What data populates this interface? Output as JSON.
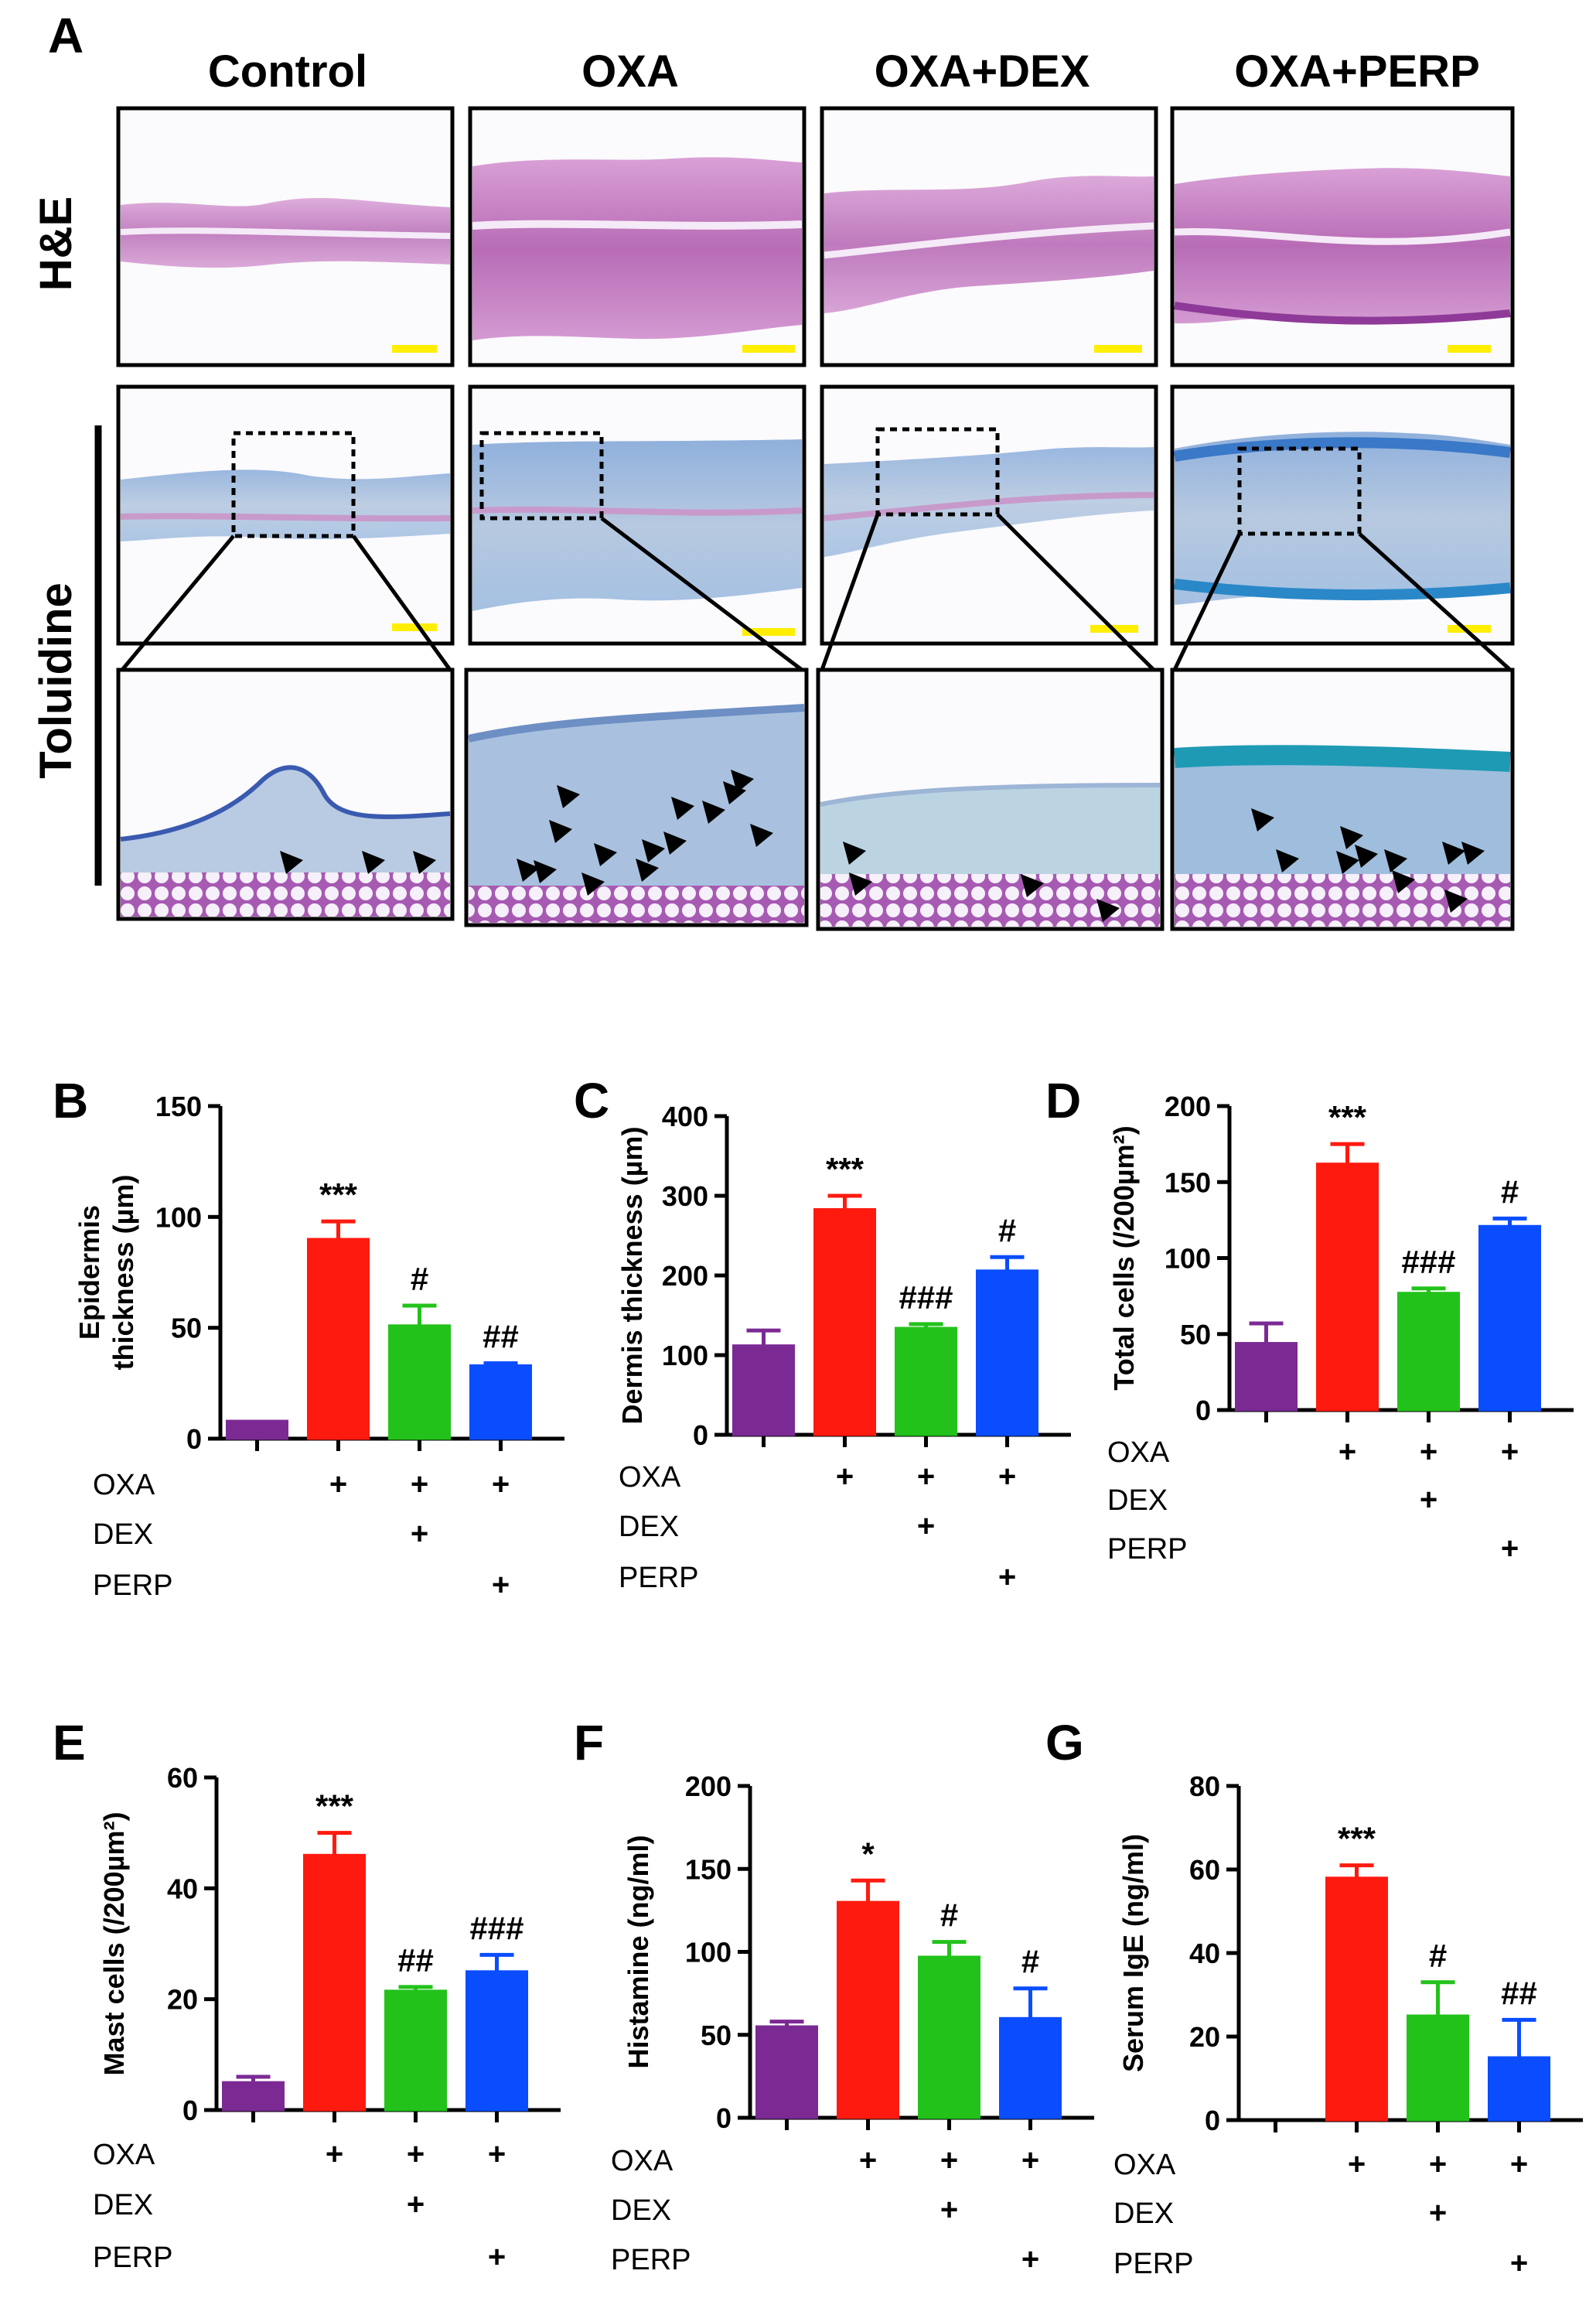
{
  "figure_label": "A",
  "columns": [
    "Control",
    "OXA",
    "OXA+DEX",
    "OXA+PERP"
  ],
  "rows": [
    "H&E",
    "Toluidine"
  ],
  "colors": {
    "control": "#7b2a94",
    "oxa": "#ff1a0f",
    "dex": "#22c21a",
    "perp": "#0a4dff",
    "he_tissue": "#c47ac0",
    "he_dark": "#8f3a98",
    "tol_tissue": "#9fb8d8",
    "tol_dark": "#3a5ab0",
    "scale_bar": "#ffee00",
    "frame": "#000000"
  },
  "chart_data": [
    {
      "panel": "B",
      "type": "bar",
      "ylabel_lines": [
        "Epidermis",
        "thickness (µm)"
      ],
      "ylim": [
        0,
        150
      ],
      "yticks": [
        0,
        50,
        100,
        150
      ],
      "ytick_labels": [
        "0",
        "50",
        "100",
        "150"
      ],
      "categories": [
        "Control",
        "OXA",
        "OXA+DEX",
        "OXA+PERP"
      ],
      "values": [
        8,
        90,
        51,
        33
      ],
      "errors": [
        0,
        8,
        9,
        1
      ],
      "annotations": [
        "",
        "***",
        "#",
        "##"
      ],
      "ann_size": "large",
      "treatment_labels": [
        "OXA",
        "DEX",
        "PERP"
      ],
      "treatments": [
        [
          "",
          "+",
          "+",
          "+"
        ],
        [
          "",
          "",
          "+",
          ""
        ],
        [
          "",
          "",
          "",
          "+"
        ]
      ]
    },
    {
      "panel": "C",
      "type": "bar",
      "ylabel_lines": [
        "Dermis thickness (µm)"
      ],
      "ylim": [
        0,
        400
      ],
      "yticks": [
        0,
        100,
        200,
        300,
        400
      ],
      "ytick_labels": [
        "0",
        "100",
        "200",
        "300",
        "400"
      ],
      "categories": [
        "Control",
        "OXA",
        "OXA+DEX",
        "OXA+PERP"
      ],
      "values": [
        112,
        283,
        134,
        206
      ],
      "errors": [
        19,
        17,
        5,
        17
      ],
      "annotations": [
        "",
        "***",
        "###",
        "#"
      ],
      "ann_size": "large",
      "treatment_labels": [
        "OXA",
        "DEX",
        "PERP"
      ],
      "treatments": [
        [
          "",
          "+",
          "+",
          "+"
        ],
        [
          "",
          "",
          "+",
          ""
        ],
        [
          "",
          "",
          "",
          "+"
        ]
      ]
    },
    {
      "panel": "D",
      "type": "bar",
      "ylabel_lines": [
        "Total cells (/200µm²)"
      ],
      "ylim": [
        0,
        200
      ],
      "yticks": [
        0,
        50,
        100,
        150,
        200
      ],
      "ytick_labels": [
        "0",
        "50",
        "100",
        "150",
        "200"
      ],
      "categories": [
        "Control",
        "OXA",
        "OXA+DEX",
        "OXA+PERP"
      ],
      "values": [
        44,
        162,
        77,
        121
      ],
      "errors": [
        13,
        13,
        3,
        5
      ],
      "annotations": [
        "",
        "***",
        "###",
        "#"
      ],
      "ann_size": "small",
      "treatment_labels": [
        "OXA",
        "DEX",
        "PERP"
      ],
      "treatments": [
        [
          "",
          "+",
          "+",
          "+"
        ],
        [
          "",
          "",
          "+",
          ""
        ],
        [
          "",
          "",
          "",
          "+"
        ]
      ]
    },
    {
      "panel": "E",
      "type": "bar",
      "ylabel_lines": [
        "Mast cells (/200µm²)"
      ],
      "ylim": [
        0,
        60
      ],
      "yticks": [
        0,
        20,
        40,
        60
      ],
      "ytick_labels": [
        "0",
        "20",
        "40",
        "60"
      ],
      "categories": [
        "Control",
        "OXA",
        "OXA+DEX",
        "OXA+PERP"
      ],
      "values": [
        5,
        46,
        21.5,
        25
      ],
      "errors": [
        1,
        4,
        0.7,
        3
      ],
      "annotations": [
        "",
        "***",
        "##",
        "###"
      ],
      "ann_size": "large",
      "treatment_labels": [
        "OXA",
        "DEX",
        "PERP"
      ],
      "treatments": [
        [
          "",
          "+",
          "+",
          "+"
        ],
        [
          "",
          "",
          "+",
          ""
        ],
        [
          "",
          "",
          "",
          "+"
        ]
      ]
    },
    {
      "panel": "F",
      "type": "bar",
      "ylabel_lines": [
        "Histamine (ng/ml)"
      ],
      "ylim": [
        0,
        200
      ],
      "yticks": [
        0,
        50,
        100,
        150,
        200
      ],
      "ytick_labels": [
        "0",
        "50",
        "100",
        "150",
        "200"
      ],
      "categories": [
        "Control",
        "OXA",
        "OXA+DEX",
        "OXA+PERP"
      ],
      "values": [
        55,
        130,
        97,
        60
      ],
      "errors": [
        3,
        13,
        9,
        18
      ],
      "annotations": [
        "",
        "*",
        "#",
        "#"
      ],
      "ann_size": "large",
      "treatment_labels": [
        "OXA",
        "DEX",
        "PERP"
      ],
      "treatments": [
        [
          "",
          "+",
          "+",
          "+"
        ],
        [
          "",
          "",
          "+",
          ""
        ],
        [
          "",
          "",
          "",
          "+"
        ]
      ]
    },
    {
      "panel": "G",
      "type": "bar",
      "ylabel_lines": [
        "Serum IgE (ng/ml)"
      ],
      "ylim": [
        0,
        80
      ],
      "yticks": [
        0,
        20,
        40,
        60,
        80
      ],
      "ytick_labels": [
        "0",
        "20",
        "40",
        "60",
        "80"
      ],
      "categories": [
        "Control",
        "OXA",
        "OXA+DEX",
        "OXA+PERP"
      ],
      "values": [
        0,
        58,
        25,
        15
      ],
      "errors": [
        0,
        3,
        8,
        9
      ],
      "annotations": [
        "",
        "***",
        "#",
        "##"
      ],
      "ann_size": "large",
      "treatment_labels": [
        "OXA",
        "DEX",
        "PERP"
      ],
      "treatments": [
        [
          "",
          "+",
          "+",
          "+"
        ],
        [
          "",
          "",
          "+",
          ""
        ],
        [
          "",
          "",
          "",
          "+"
        ]
      ]
    }
  ]
}
